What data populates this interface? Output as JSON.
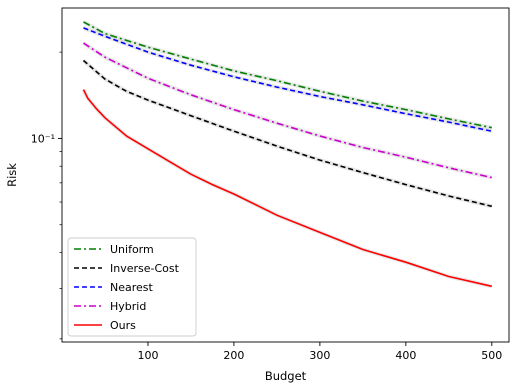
{
  "chart_data": {
    "type": "line",
    "xlabel": "Budget",
    "ylabel": "Risk",
    "xlim": [
      0,
      520
    ],
    "ylim": [
      0.0195,
      0.285
    ],
    "yscale": "log",
    "xticks": [
      100,
      200,
      300,
      400,
      500
    ],
    "yticks": [
      {
        "value": 0.1,
        "label": "10⁻¹"
      }
    ],
    "grid": false,
    "legend_position": "lower-left",
    "series": [
      {
        "name": "Uniform",
        "color": "#008000",
        "dash": "dashdot",
        "points": [
          [
            25,
            0.255
          ],
          [
            50,
            0.232
          ],
          [
            100,
            0.208
          ],
          [
            150,
            0.189
          ],
          [
            200,
            0.172
          ],
          [
            250,
            0.159
          ],
          [
            300,
            0.146
          ],
          [
            350,
            0.135
          ],
          [
            400,
            0.126
          ],
          [
            450,
            0.117
          ],
          [
            500,
            0.109
          ]
        ]
      },
      {
        "name": "Inverse-Cost",
        "color": "#000000",
        "dash": "dashed",
        "points": [
          [
            25,
            0.187
          ],
          [
            50,
            0.161
          ],
          [
            75,
            0.146
          ],
          [
            100,
            0.136
          ],
          [
            150,
            0.12
          ],
          [
            200,
            0.106
          ],
          [
            250,
            0.094
          ],
          [
            300,
            0.084
          ],
          [
            350,
            0.076
          ],
          [
            400,
            0.069
          ],
          [
            450,
            0.063
          ],
          [
            500,
            0.058
          ]
        ]
      },
      {
        "name": "Nearest",
        "color": "#0000ff",
        "dash": "dashed",
        "points": [
          [
            25,
            0.243
          ],
          [
            50,
            0.227
          ],
          [
            100,
            0.2
          ],
          [
            150,
            0.18
          ],
          [
            200,
            0.164
          ],
          [
            250,
            0.151
          ],
          [
            300,
            0.14
          ],
          [
            350,
            0.131
          ],
          [
            400,
            0.122
          ],
          [
            450,
            0.114
          ],
          [
            500,
            0.106
          ]
        ]
      },
      {
        "name": "Hybrid",
        "color": "#cc00cc",
        "dash": "dashdot",
        "points": [
          [
            25,
            0.215
          ],
          [
            50,
            0.192
          ],
          [
            100,
            0.162
          ],
          [
            150,
            0.142
          ],
          [
            200,
            0.126
          ],
          [
            250,
            0.113
          ],
          [
            300,
            0.102
          ],
          [
            350,
            0.093
          ],
          [
            400,
            0.086
          ],
          [
            450,
            0.079
          ],
          [
            500,
            0.073
          ]
        ]
      },
      {
        "name": "Ours",
        "color": "#ff0000",
        "dash": "solid",
        "points": [
          [
            25,
            0.148
          ],
          [
            30,
            0.138
          ],
          [
            40,
            0.127
          ],
          [
            50,
            0.118
          ],
          [
            75,
            0.102
          ],
          [
            100,
            0.092
          ],
          [
            125,
            0.083
          ],
          [
            150,
            0.075
          ],
          [
            175,
            0.069
          ],
          [
            200,
            0.064
          ],
          [
            250,
            0.054
          ],
          [
            300,
            0.047
          ],
          [
            350,
            0.041
          ],
          [
            400,
            0.037
          ],
          [
            450,
            0.033
          ],
          [
            500,
            0.0305
          ]
        ]
      }
    ]
  }
}
